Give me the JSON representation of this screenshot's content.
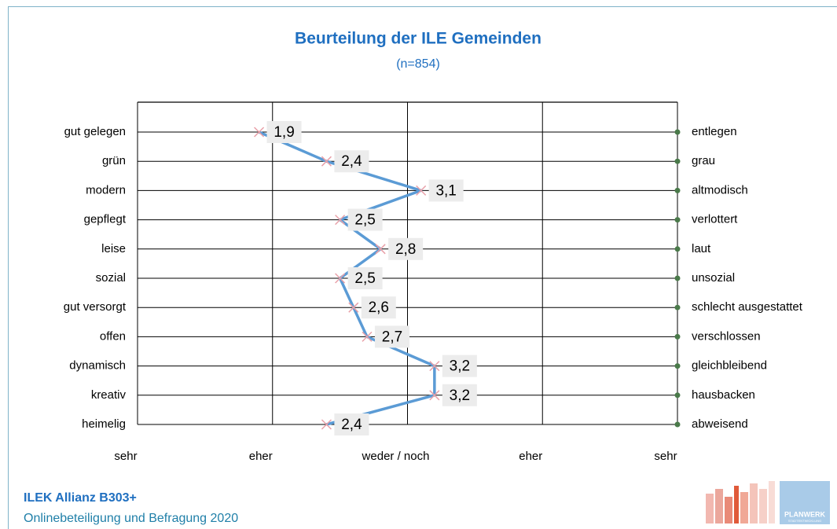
{
  "chart_data": {
    "type": "profile",
    "title": "Beurteilung der ILE Gemeinden",
    "subtitle": "(n=854)",
    "categories": [
      "gut gelegen",
      "grün",
      "modern",
      "gepflegt",
      "leise",
      "sozial",
      "gut versorgt",
      "offen",
      "dynamisch",
      "kreativ",
      "heimelig"
    ],
    "right_categories": [
      "entlegen",
      "grau",
      "altmodisch",
      "verlottert",
      "laut",
      "unsozial",
      "schlecht ausgestattet",
      "verschlossen",
      "gleichbleibend",
      "hausbacken",
      "abweisend"
    ],
    "values": [
      1.9,
      2.4,
      3.1,
      2.5,
      2.8,
      2.5,
      2.6,
      2.7,
      3.2,
      3.2,
      2.4
    ],
    "value_labels": [
      "1,9",
      "2,4",
      "3,1",
      "2,5",
      "2,8",
      "2,5",
      "2,6",
      "2,7",
      "3,2",
      "3,2",
      "2,4"
    ],
    "color": "#5b9bd5",
    "marker_color": "#e8a0a8",
    "xlim": [
      1,
      5
    ],
    "xticks": [
      {
        "value": 1,
        "label": "sehr"
      },
      {
        "value": 2,
        "label": "eher"
      },
      {
        "value": 3,
        "label": "weder / noch"
      },
      {
        "value": 4,
        "label": "eher"
      },
      {
        "value": 5,
        "label": "sehr"
      }
    ],
    "grid": true
  },
  "footer": {
    "title": "ILEK Allianz B303+",
    "subtitle": "Onlinebeteiligung und Befragung 2020"
  },
  "logo": {
    "name": "PLANWERK",
    "tagline": "STADTENTWICKLUNG"
  }
}
